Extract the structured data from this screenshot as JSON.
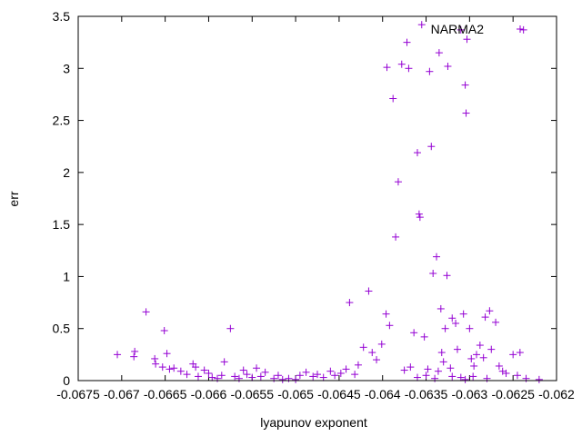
{
  "chart_data": {
    "type": "scatter",
    "title": "",
    "xlabel": "lyapunov exponent",
    "ylabel": "err",
    "xlim": [
      -0.0675,
      -0.062
    ],
    "ylim": [
      0,
      3.5
    ],
    "xticks": [
      -0.0675,
      -0.067,
      -0.0665,
      -0.066,
      -0.0655,
      -0.065,
      -0.0645,
      -0.064,
      -0.0635,
      -0.063,
      -0.0625,
      -0.062
    ],
    "xtick_labels": [
      "-0.0675",
      "-0.067",
      "-0.0665",
      "-0.066",
      "-0.0655",
      "-0.065",
      "-0.0645",
      "-0.064",
      "-0.0635",
      "-0.063",
      "-0.0625",
      "-0.062"
    ],
    "yticks": [
      0,
      0.5,
      1,
      1.5,
      2,
      2.5,
      3,
      3.5
    ],
    "ytick_labels": [
      "0",
      "0.5",
      "1",
      "1.5",
      "2",
      "2.5",
      "3",
      "3.5"
    ],
    "grid": false,
    "legend": {
      "position": "top-right",
      "entries": [
        "NARMA2"
      ]
    },
    "series": [
      {
        "name": "NARMA2",
        "color": "#9400d3",
        "marker": "plus",
        "points": [
          [
            -0.06705,
            0.25
          ],
          [
            -0.06685,
            0.28
          ],
          [
            -0.06686,
            0.23
          ],
          [
            -0.06672,
            0.66
          ],
          [
            -0.06651,
            0.48
          ],
          [
            -0.06648,
            0.26
          ],
          [
            -0.06662,
            0.21
          ],
          [
            -0.06661,
            0.16
          ],
          [
            -0.06653,
            0.13
          ],
          [
            -0.06645,
            0.11
          ],
          [
            -0.0664,
            0.12
          ],
          [
            -0.06632,
            0.09
          ],
          [
            -0.06625,
            0.06
          ],
          [
            -0.06618,
            0.16
          ],
          [
            -0.06615,
            0.13
          ],
          [
            -0.06612,
            0.04
          ],
          [
            -0.06605,
            0.1
          ],
          [
            -0.066,
            0.07
          ],
          [
            -0.06596,
            0.03
          ],
          [
            -0.0659,
            0.02
          ],
          [
            -0.06585,
            0.05
          ],
          [
            -0.06582,
            0.18
          ],
          [
            -0.06575,
            0.5
          ],
          [
            -0.0657,
            0.04
          ],
          [
            -0.06565,
            0.02
          ],
          [
            -0.0656,
            0.1
          ],
          [
            -0.06556,
            0.06
          ],
          [
            -0.0655,
            0.03
          ],
          [
            -0.06545,
            0.12
          ],
          [
            -0.0654,
            0.04
          ],
          [
            -0.06535,
            0.08
          ],
          [
            -0.06525,
            0.02
          ],
          [
            -0.0652,
            0.05
          ],
          [
            -0.06515,
            0.01
          ],
          [
            -0.06508,
            0.02
          ],
          [
            -0.065,
            0.01
          ],
          [
            -0.06495,
            0.05
          ],
          [
            -0.06488,
            0.08
          ],
          [
            -0.0648,
            0.04
          ],
          [
            -0.06475,
            0.06
          ],
          [
            -0.06468,
            0.03
          ],
          [
            -0.0646,
            0.09
          ],
          [
            -0.06455,
            0.05
          ],
          [
            -0.06448,
            0.07
          ],
          [
            -0.06442,
            0.11
          ],
          [
            -0.06438,
            0.75
          ],
          [
            -0.06432,
            0.06
          ],
          [
            -0.06428,
            0.15
          ],
          [
            -0.06422,
            0.32
          ],
          [
            -0.06416,
            0.86
          ],
          [
            -0.06412,
            0.27
          ],
          [
            -0.06407,
            0.2
          ],
          [
            -0.06401,
            0.35
          ],
          [
            -0.06396,
            0.64
          ],
          [
            -0.06392,
            0.53
          ],
          [
            -0.06395,
            3.01
          ],
          [
            -0.06388,
            2.71
          ],
          [
            -0.06382,
            1.91
          ],
          [
            -0.06378,
            3.04
          ],
          [
            -0.06372,
            3.25
          ],
          [
            -0.0637,
            3.0
          ],
          [
            -0.06385,
            1.38
          ],
          [
            -0.06375,
            0.1
          ],
          [
            -0.06368,
            0.13
          ],
          [
            -0.06364,
            0.46
          ],
          [
            -0.0636,
            2.19
          ],
          [
            -0.06358,
            1.6
          ],
          [
            -0.06357,
            1.57
          ],
          [
            -0.06355,
            3.42
          ],
          [
            -0.06352,
            0.42
          ],
          [
            -0.06348,
            0.11
          ],
          [
            -0.06346,
            2.97
          ],
          [
            -0.06342,
            1.03
          ],
          [
            -0.06344,
            2.25
          ],
          [
            -0.06338,
            1.19
          ],
          [
            -0.06335,
            3.15
          ],
          [
            -0.06333,
            0.69
          ],
          [
            -0.06328,
            0.5
          ],
          [
            -0.06325,
            3.02
          ],
          [
            -0.06326,
            1.01
          ],
          [
            -0.0632,
            0.6
          ],
          [
            -0.06316,
            0.55
          ],
          [
            -0.06314,
            0.3
          ],
          [
            -0.0631,
            3.37
          ],
          [
            -0.06307,
            0.64
          ],
          [
            -0.06305,
            2.84
          ],
          [
            -0.06304,
            2.57
          ],
          [
            -0.06303,
            3.28
          ],
          [
            -0.063,
            0.5
          ],
          [
            -0.06298,
            0.21
          ],
          [
            -0.06295,
            0.14
          ],
          [
            -0.06292,
            0.25
          ],
          [
            -0.06288,
            0.34
          ],
          [
            -0.06284,
            0.22
          ],
          [
            -0.06282,
            0.61
          ],
          [
            -0.06277,
            0.67
          ],
          [
            -0.06275,
            0.3
          ],
          [
            -0.0627,
            0.56
          ],
          [
            -0.06266,
            0.14
          ],
          [
            -0.06262,
            0.09
          ],
          [
            -0.06258,
            0.07
          ],
          [
            -0.0625,
            0.25
          ],
          [
            -0.06245,
            0.05
          ],
          [
            -0.06242,
            0.27
          ],
          [
            -0.06238,
            3.37
          ],
          [
            -0.06235,
            0.02
          ],
          [
            -0.0622,
            0.01
          ],
          [
            -0.06305,
            0.01
          ],
          [
            -0.0631,
            0.03
          ],
          [
            -0.0632,
            0.04
          ],
          [
            -0.0634,
            0.02
          ],
          [
            -0.0635,
            0.05
          ],
          [
            -0.0636,
            0.03
          ],
          [
            -0.0633,
            0.18
          ],
          [
            -0.06336,
            0.09
          ],
          [
            -0.06332,
            0.27
          ],
          [
            -0.06322,
            0.12
          ],
          [
            -0.06296,
            0.04
          ],
          [
            -0.0628,
            0.02
          ]
        ]
      }
    ]
  }
}
